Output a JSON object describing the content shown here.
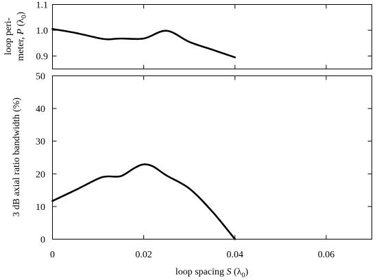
{
  "chart_data": [
    {
      "type": "line",
      "panel": "top",
      "ylabel_line1": "loop peri-",
      "ylabel_line2": "meter, P (λ0)",
      "ylabel_line2_prefix": "meter, ",
      "ylabel_line2_var": "P",
      "ylabel_line2_unit": "λ",
      "ylabel_line2_sub": "0",
      "ylim": [
        0.85,
        1.1
      ],
      "yticks": [
        0.9,
        1.0,
        1.1
      ],
      "ytick_labels": [
        "0.9",
        "1.0",
        "1.1"
      ],
      "xlim": [
        0,
        0.07
      ],
      "series": [
        {
          "x": [
            0,
            0.005,
            0.01,
            0.012,
            0.015,
            0.02,
            0.025,
            0.03,
            0.035,
            0.04
          ],
          "y": [
            1.005,
            0.99,
            0.97,
            0.965,
            0.968,
            0.968,
            0.998,
            0.955,
            0.925,
            0.895
          ]
        }
      ]
    },
    {
      "type": "line",
      "panel": "bottom",
      "ylabel": "3 dB axial ratio bandwidth  (%)",
      "ylim": [
        0,
        50
      ],
      "yticks": [
        0,
        10,
        20,
        30,
        40,
        50
      ],
      "ytick_labels": [
        "0",
        "10",
        "20",
        "30",
        "40",
        "50"
      ],
      "xlim": [
        0,
        0.07
      ],
      "xticks": [
        0,
        0.02,
        0.04,
        0.06
      ],
      "xtick_labels": [
        "0",
        "0.02",
        "0.04",
        "0.06"
      ],
      "xlabel": "loop spacing S (λ0)",
      "xlabel_prefix": "loop spacing ",
      "xlabel_var": "S",
      "xlabel_unit": "λ",
      "xlabel_sub": "0",
      "series": [
        {
          "x": [
            0,
            0.005,
            0.01,
            0.012,
            0.015,
            0.018,
            0.02,
            0.022,
            0.025,
            0.03,
            0.035,
            0.04
          ],
          "y": [
            11.7,
            15.0,
            18.5,
            19.2,
            19.3,
            21.8,
            22.9,
            22.3,
            19.5,
            15.5,
            8.5,
            0
          ]
        }
      ]
    }
  ]
}
